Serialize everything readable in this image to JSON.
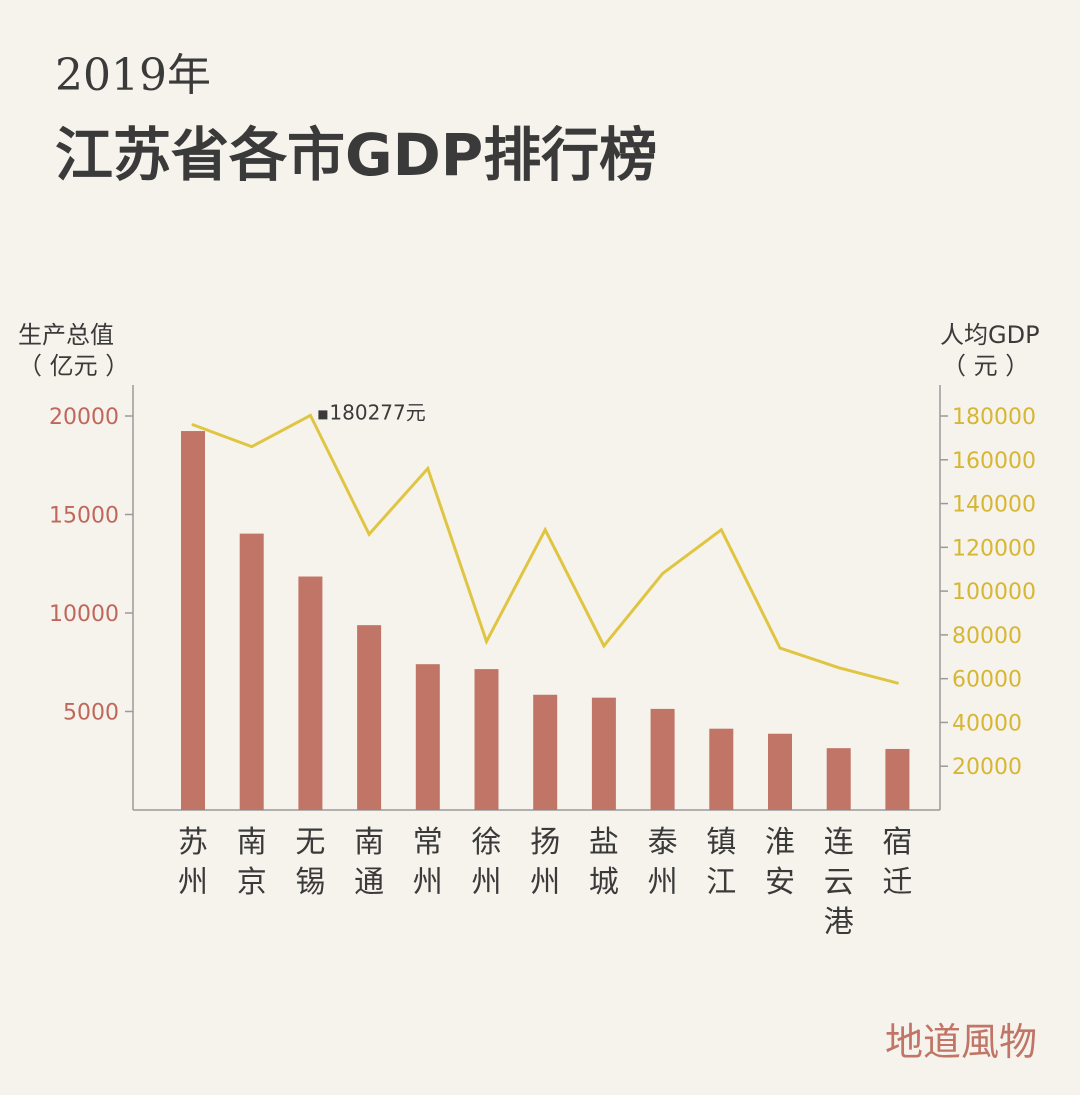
{
  "title": {
    "year": "2019年",
    "main": "江苏省各市GDP排行榜"
  },
  "brand": "地道風物",
  "colors": {
    "bar": "#c07567",
    "line": "#e0c543",
    "left_tick": "#c0675c",
    "right_tick": "#d7b634",
    "axis": "#9a9a9a",
    "text": "#3a3a3a"
  },
  "chart_data": {
    "type": "bar",
    "categories": [
      "苏州",
      "南京",
      "无锡",
      "南通",
      "常州",
      "徐州",
      "扬州",
      "盐城",
      "泰州",
      "镇江",
      "淮安",
      "连云港",
      "宿迁"
    ],
    "series": [
      {
        "type": "bar",
        "axis": "left",
        "values": [
          19236,
          14030,
          11852,
          9383,
          7401,
          7151,
          5850,
          5702,
          5133,
          4127,
          3871,
          3139,
          3099
        ]
      },
      {
        "type": "line",
        "axis": "right",
        "values": [
          176000,
          166000,
          180277,
          126000,
          156000,
          77000,
          128000,
          75000,
          108000,
          128000,
          74000,
          65000,
          58000
        ]
      }
    ],
    "ylabel_left": [
      "生产总值",
      "（ 亿元 ）"
    ],
    "ylabel_right": [
      "人均GDP",
      "（ 元 ）"
    ],
    "y_left_ticks": [
      "5000",
      "10000",
      "15000",
      "20000"
    ],
    "y_right_ticks": [
      "20000",
      "40000",
      "60000",
      "80000",
      "100000",
      "120000",
      "140000",
      "160000",
      "180000"
    ],
    "ylim_left": [
      0,
      20000
    ],
    "ylim_right": [
      0,
      180000
    ],
    "annotation": {
      "category": "无锡",
      "text": "180277元"
    }
  }
}
